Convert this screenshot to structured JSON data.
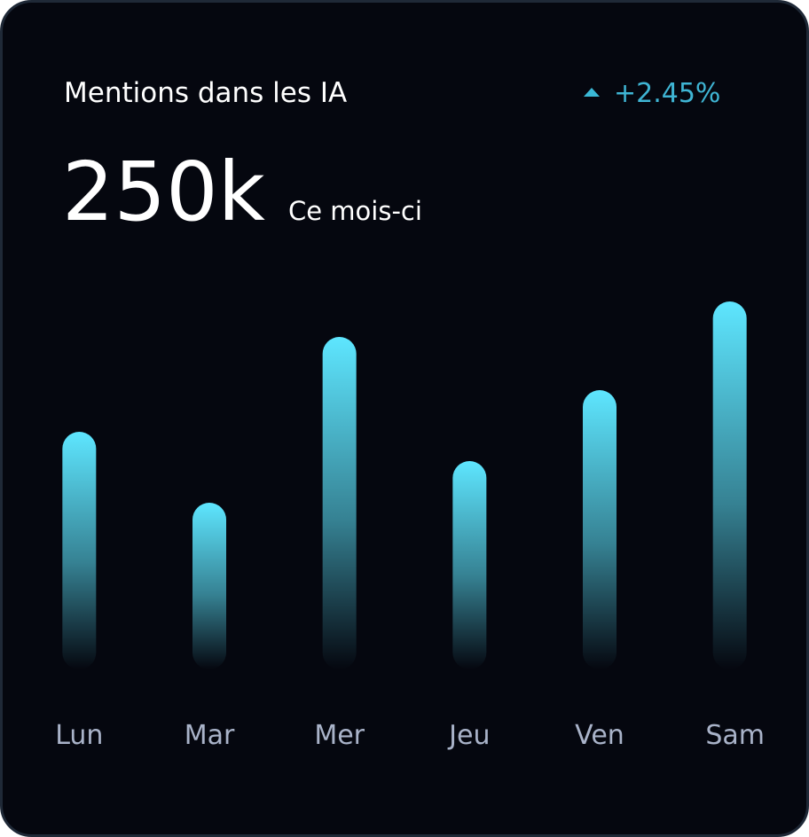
{
  "header": {
    "title": "Mentions dans les IA",
    "total": "250k",
    "period": "Ce mois-ci",
    "change": "+2.45%"
  },
  "chart_data": {
    "type": "bar",
    "categories": [
      "Lun",
      "Mar",
      "Mer",
      "Jeu",
      "Ven",
      "Sam"
    ],
    "values": [
      268,
      188,
      375,
      235,
      315,
      415
    ],
    "color": "#5ee6ff"
  }
}
